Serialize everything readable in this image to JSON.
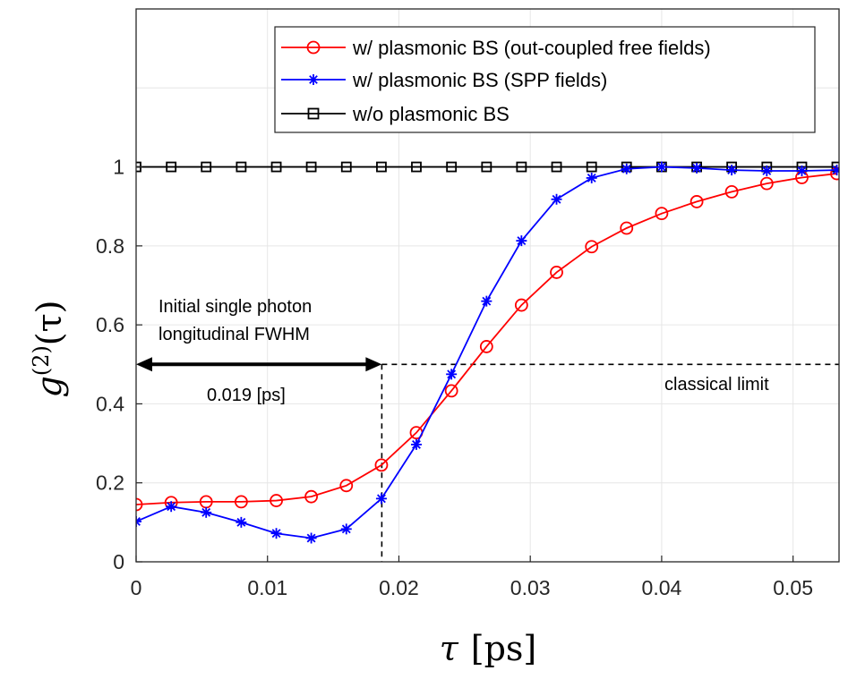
{
  "chart_data": {
    "type": "line",
    "title": "",
    "xlabel": "τ [ps]",
    "ylabel": "g(2)(τ)",
    "ylabel_parts": {
      "g": "g",
      "sup": "(2)",
      "arg": "(τ)"
    },
    "xlabel_parts": {
      "tau": "τ",
      "unit": "[ps]"
    },
    "xlim": [
      0,
      0.0535
    ],
    "ylim": [
      0,
      1.4
    ],
    "xticks": [
      0,
      0.01,
      0.02,
      0.03,
      0.04,
      0.05
    ],
    "xtick_labels": [
      "0",
      "0.01",
      "0.02",
      "0.03",
      "0.04",
      "0.05"
    ],
    "yticks": [
      0,
      0.2,
      0.4,
      0.6,
      0.8,
      1
    ],
    "ytick_labels": [
      "0",
      "0.2",
      "0.4",
      "0.6",
      "0.8",
      "1"
    ],
    "grid": true,
    "legend_position": "top-right",
    "series": [
      {
        "name": "w/ plasmonic BS (out-coupled free fields)",
        "label_main": "w/ plasmonic BS",
        "label_note": "(out-coupled free fields)",
        "color": "#ff0000",
        "marker": "circle",
        "x": [
          0,
          0.00267,
          0.00533,
          0.008,
          0.01067,
          0.01333,
          0.016,
          0.01867,
          0.02133,
          0.024,
          0.02667,
          0.02933,
          0.032,
          0.03467,
          0.03733,
          0.04,
          0.04267,
          0.04533,
          0.048,
          0.05067,
          0.05333
        ],
        "values": [
          0.145,
          0.15,
          0.152,
          0.152,
          0.155,
          0.165,
          0.193,
          0.245,
          0.327,
          0.433,
          0.545,
          0.65,
          0.733,
          0.798,
          0.845,
          0.882,
          0.912,
          0.937,
          0.958,
          0.973,
          0.983
        ]
      },
      {
        "name": "w/ plasmonic BS (SPP fields)",
        "label_main": "w/ plasmonic BS",
        "label_note": "(SPP fields)",
        "color": "#0000ff",
        "marker": "asterisk",
        "x": [
          0,
          0.00267,
          0.00533,
          0.008,
          0.01067,
          0.01333,
          0.016,
          0.01867,
          0.02133,
          0.024,
          0.02667,
          0.02933,
          0.032,
          0.03467,
          0.03733,
          0.04,
          0.04267,
          0.04533,
          0.048,
          0.05067,
          0.05333
        ],
        "values": [
          0.102,
          0.14,
          0.125,
          0.1,
          0.072,
          0.06,
          0.083,
          0.16,
          0.297,
          0.475,
          0.66,
          0.813,
          0.918,
          0.972,
          0.995,
          1.0,
          0.997,
          0.992,
          0.99,
          0.99,
          0.992
        ]
      },
      {
        "name": "w/o plasmonic BS",
        "label_main": "w/o plasmonic BS",
        "label_note": "",
        "color": "#000000",
        "marker": "square",
        "x": [
          0,
          0.00267,
          0.00533,
          0.008,
          0.01067,
          0.01333,
          0.016,
          0.01867,
          0.02133,
          0.024,
          0.02667,
          0.02933,
          0.032,
          0.03467,
          0.03733,
          0.04,
          0.04267,
          0.04533,
          0.048,
          0.05067,
          0.05333
        ],
        "values": [
          1,
          1,
          1,
          1,
          1,
          1,
          1,
          1,
          1,
          1,
          1,
          1,
          1,
          1,
          1,
          1,
          1,
          1,
          1,
          1,
          1
        ]
      }
    ],
    "annotations": {
      "fwhm_label_line1": "Initial single photon",
      "fwhm_label_line2": "longitudinal FWHM",
      "fwhm_value": "0.019 [ps]",
      "fwhm_x": 0.0187,
      "classical_limit_label": "classical limit",
      "classical_limit_y": 0.5
    }
  }
}
